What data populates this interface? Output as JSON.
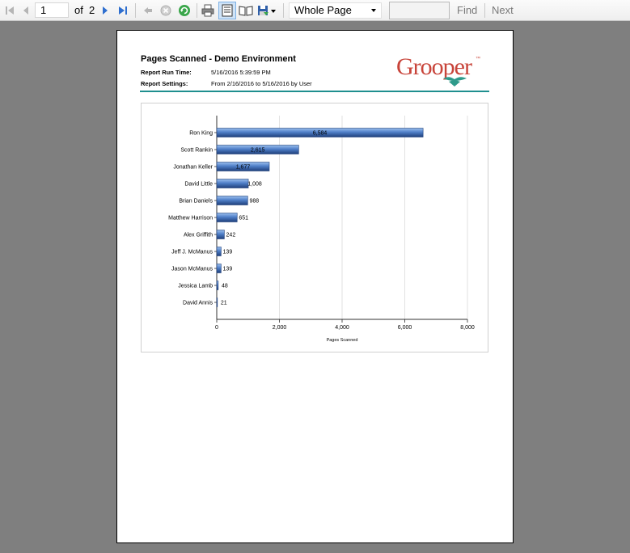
{
  "toolbar": {
    "first_icon": "first-page-icon",
    "prev_icon": "previous-page-icon",
    "page_number": "1",
    "of_label": "of",
    "page_count": "2",
    "next_icon": "next-page-icon",
    "last_icon": "last-page-icon",
    "back_icon": "back-icon",
    "stop_icon": "stop-icon",
    "refresh_icon": "refresh-icon",
    "print_icon": "print-icon",
    "print_layout_icon": "print-layout-icon",
    "page_setup_icon": "page-setup-icon",
    "export_icon": "export-icon",
    "zoom_value": "Whole Page",
    "search_value": "",
    "find_label": "Find",
    "next_label": "Next"
  },
  "report": {
    "title": "Pages Scanned - Demo Environment",
    "run_time_label": "Report Run Time:",
    "run_time_value": "5/16/2016 5:39:59 PM",
    "settings_label": "Report Settings:",
    "settings_value": "From 2/16/2016 to 5/16/2016 by User",
    "logo_text": "Grooper",
    "logo_mark": "™"
  },
  "colors": {
    "rule": "#1f8f8f",
    "logo": "#c8443a",
    "logo_accent": "#2e9a8a",
    "bar": "#4f7fc8"
  },
  "chart_data": {
    "type": "bar",
    "orientation": "horizontal",
    "categories": [
      "Ron King",
      "Scott Rankin",
      "Jonathan Keller",
      "David Little",
      "Brian Daniels",
      "Matthew Harrison",
      "Alex Griffith",
      "Jeff J. McManus",
      "Jason McManus",
      "Jessica Lamb",
      "David Annis"
    ],
    "values": [
      6584,
      2615,
      1677,
      1008,
      988,
      651,
      242,
      139,
      139,
      48,
      21
    ],
    "value_labels": [
      "6,584",
      "2,615",
      "1,677",
      "1,008",
      "988",
      "651",
      "242",
      "139",
      "139",
      "48",
      "21"
    ],
    "xlabel": "Pages Scanned",
    "xlim": [
      0,
      8000
    ],
    "xticks": [
      0,
      2000,
      4000,
      6000,
      8000
    ],
    "xtick_labels": [
      "0",
      "2,000",
      "4,000",
      "6,000",
      "8,000"
    ],
    "grid": "vertical"
  }
}
